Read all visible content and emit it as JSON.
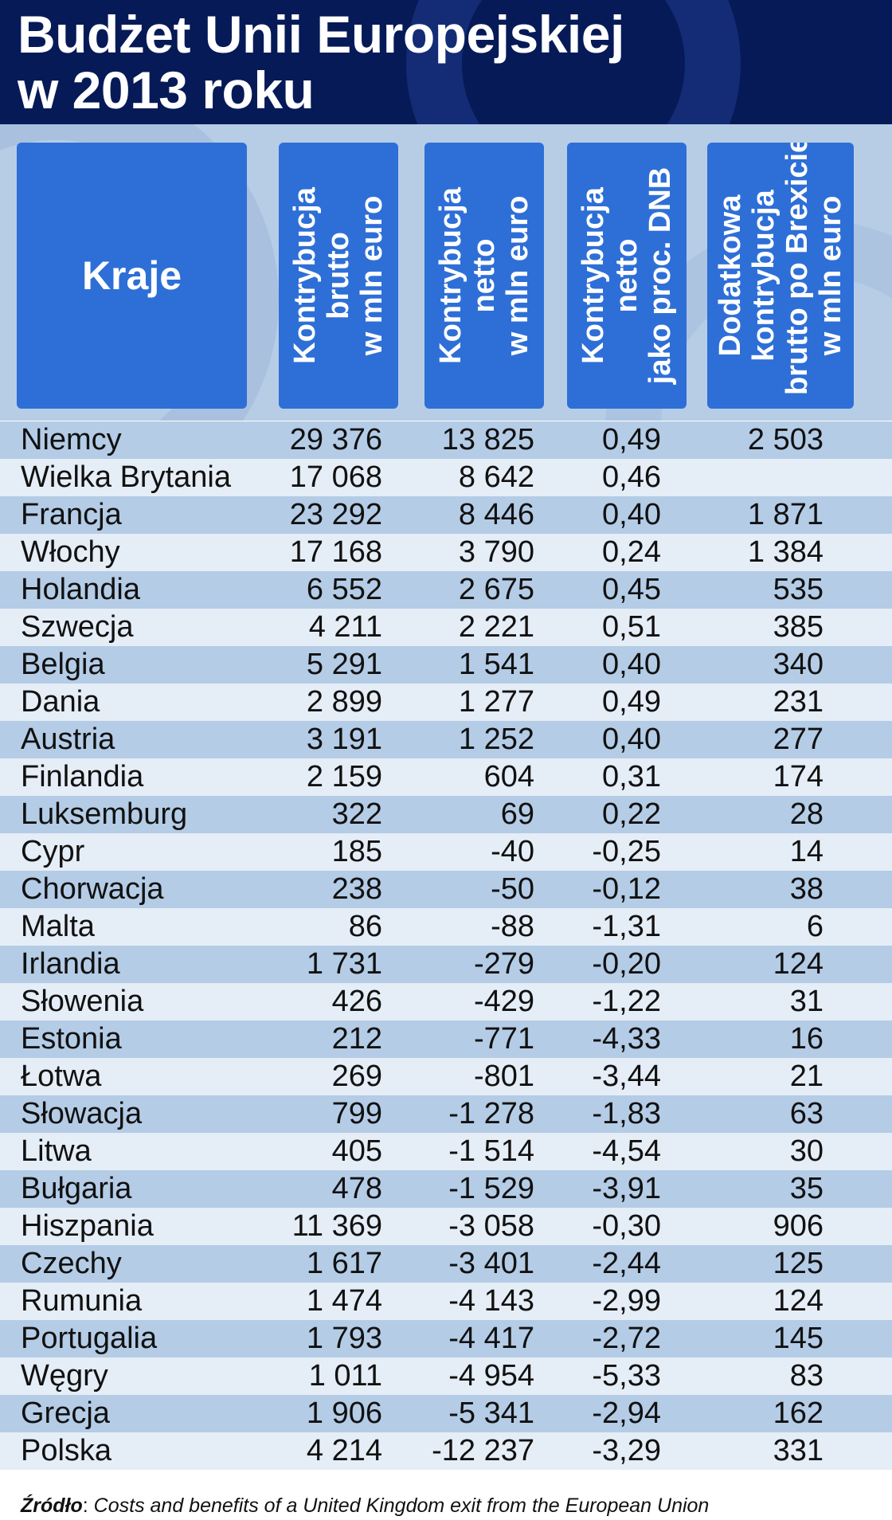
{
  "title": {
    "line1": "Budżet Unii Europejskiej",
    "line2": "w 2013 roku"
  },
  "source": {
    "label": "Źródło",
    "text": "Costs and benefits of a United Kingdom exit from the European Union"
  },
  "chart_data": {
    "type": "table",
    "title": "Budżet Unii Europejskiej w 2013 roku",
    "columns": [
      {
        "key": "kraj",
        "label": "Kraje",
        "lines": [
          "Kraje"
        ]
      },
      {
        "key": "brutto",
        "label": "Kontrybucja brutto w mln euro",
        "lines": [
          "Kontrybucja",
          "brutto",
          "w mln euro"
        ]
      },
      {
        "key": "netto",
        "label": "Kontrybucja netto w mln euro",
        "lines": [
          "Kontrybucja",
          "netto",
          "w mln euro"
        ]
      },
      {
        "key": "dnb",
        "label": "Kontrybucja netto jako proc. DNB",
        "lines": [
          "Kontrybucja",
          "netto",
          "jako proc. DNB"
        ]
      },
      {
        "key": "brexit",
        "label": "Dodatkowa kontrybucja brutto po Brexicie w mln euro",
        "lines": [
          "Dodatkowa",
          "kontrybucja",
          "brutto po Brexicie",
          "w mln euro"
        ]
      }
    ],
    "rows": [
      [
        "Niemcy",
        "29 376",
        "13 825",
        "0,49",
        "2 503"
      ],
      [
        "Wielka Brytania",
        "17 068",
        "8 642",
        "0,46",
        ""
      ],
      [
        "Francja",
        "23 292",
        "8 446",
        "0,40",
        "1 871"
      ],
      [
        "Włochy",
        "17 168",
        "3 790",
        "0,24",
        "1 384"
      ],
      [
        "Holandia",
        "6 552",
        "2 675",
        "0,45",
        "535"
      ],
      [
        "Szwecja",
        "4 211",
        "2 221",
        "0,51",
        "385"
      ],
      [
        "Belgia",
        "5 291",
        "1 541",
        "0,40",
        "340"
      ],
      [
        "Dania",
        "2 899",
        "1 277",
        "0,49",
        "231"
      ],
      [
        "Austria",
        "3 191",
        "1 252",
        "0,40",
        "277"
      ],
      [
        "Finlandia",
        "2 159",
        "604",
        "0,31",
        "174"
      ],
      [
        "Luksemburg",
        "322",
        "69",
        "0,22",
        "28"
      ],
      [
        "Cypr",
        "185",
        "-40",
        "-0,25",
        "14"
      ],
      [
        "Chorwacja",
        "238",
        "-50",
        "-0,12",
        "38"
      ],
      [
        "Malta",
        "86",
        "-88",
        "-1,31",
        "6"
      ],
      [
        "Irlandia",
        "1 731",
        "-279",
        "-0,20",
        "124"
      ],
      [
        "Słowenia",
        "426",
        "-429",
        "-1,22",
        "31"
      ],
      [
        "Estonia",
        "212",
        "-771",
        "-4,33",
        "16"
      ],
      [
        "Łotwa",
        "269",
        "-801",
        "-3,44",
        "21"
      ],
      [
        "Słowacja",
        "799",
        "-1 278",
        "-1,83",
        "63"
      ],
      [
        "Litwa",
        "405",
        "-1 514",
        "-4,54",
        "30"
      ],
      [
        "Bułgaria",
        "478",
        "-1 529",
        "-3,91",
        "35"
      ],
      [
        "Hiszpania",
        "11 369",
        "-3 058",
        "-0,30",
        "906"
      ],
      [
        "Czechy",
        "1 617",
        "-3 401",
        "-2,44",
        "125"
      ],
      [
        "Rumunia",
        "1 474",
        "-4 143",
        "-2,99",
        "124"
      ],
      [
        "Portugalia",
        "1 793",
        "-4 417",
        "-2,72",
        "145"
      ],
      [
        "Węgry",
        "1 011",
        "-4 954",
        "-5,33",
        "83"
      ],
      [
        "Grecja",
        "1 906",
        "-5 341",
        "-2,94",
        "162"
      ],
      [
        "Polska",
        "4 214",
        "-12 237",
        "-3,29",
        "331"
      ]
    ]
  },
  "colors": {
    "header_bg": "#061a57",
    "header_cell": "#2e6fd7",
    "row_odd": "#b4cce6",
    "row_even": "#e5edf6"
  }
}
